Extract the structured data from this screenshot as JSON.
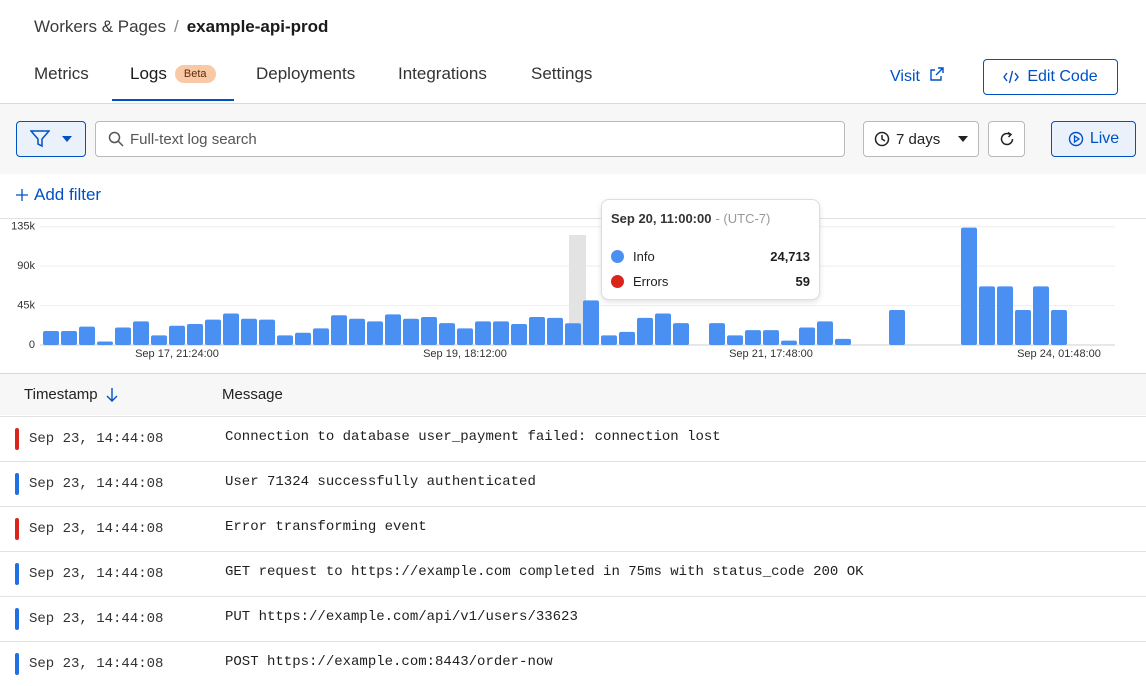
{
  "breadcrumb": {
    "parent": "Workers & Pages",
    "separator": "/",
    "current": "example-api-prod"
  },
  "tabs": [
    {
      "label": "Metrics"
    },
    {
      "label": "Logs",
      "badge": "Beta",
      "active": true
    },
    {
      "label": "Deployments"
    },
    {
      "label": "Integrations"
    },
    {
      "label": "Settings"
    }
  ],
  "actions": {
    "visit": "Visit",
    "edit_code": "Edit Code"
  },
  "toolbar": {
    "search_placeholder": "Full-text log search",
    "time_range": "7 days",
    "live": "Live",
    "add_filter": "Add filter"
  },
  "chart_data": {
    "type": "bar",
    "stacked": true,
    "categories": [
      null,
      null,
      null,
      null,
      null,
      null,
      null,
      "Sep 17, 21:24:00",
      null,
      null,
      null,
      null,
      null,
      null,
      null,
      null,
      null,
      null,
      null,
      null,
      null,
      null,
      null,
      "Sep 19, 18:12:00",
      null,
      null,
      null,
      null,
      null,
      null,
      null,
      null,
      null,
      null,
      null,
      null,
      null,
      null,
      null,
      null,
      "Sep 21, 17:48:00",
      null,
      null,
      null,
      null,
      null,
      null,
      null,
      null,
      null,
      null,
      null,
      null,
      null,
      null,
      null,
      "Sep 24, 01:48:00"
    ],
    "series": [
      {
        "name": "Errors",
        "color": "#d9251c",
        "values": [
          0,
          0,
          0,
          0,
          0,
          0,
          0,
          0,
          0,
          0,
          0,
          0,
          0,
          0,
          0,
          0,
          0,
          0,
          0,
          0,
          0,
          0,
          0,
          0,
          0,
          0,
          0,
          0,
          0,
          59,
          0,
          0,
          0,
          0,
          0,
          0,
          0,
          0,
          0,
          0,
          0,
          0,
          0,
          0,
          0,
          0,
          0,
          0,
          0,
          0,
          0,
          0,
          0,
          0,
          0,
          0,
          0
        ]
      },
      {
        "name": "Info",
        "color": "#4a90f2",
        "values": [
          16000,
          16000,
          21000,
          4000,
          20000,
          27000,
          11000,
          22000,
          24000,
          29000,
          36000,
          30000,
          29000,
          11000,
          14000,
          19000,
          34000,
          30000,
          27000,
          35000,
          30000,
          32000,
          25000,
          19000,
          27000,
          27000,
          24000,
          32000,
          31000,
          24713,
          51000,
          11000,
          15000,
          31000,
          36000,
          25000,
          0,
          25000,
          11000,
          17000,
          17000,
          5000,
          20000,
          27000,
          7000,
          0,
          0,
          40000,
          0,
          0,
          0,
          134000,
          67000,
          67000,
          40000,
          67000,
          40000
        ],
        "value_labels": [
          null,
          null,
          null,
          null,
          null,
          null,
          null,
          null,
          null,
          null,
          null,
          null,
          null,
          null,
          null,
          null,
          null,
          null,
          null,
          null,
          null,
          null,
          null,
          null,
          null,
          null,
          null,
          null,
          null,
          "24,713",
          null,
          null,
          null,
          null,
          null,
          null,
          null,
          null,
          null,
          null,
          null,
          null,
          null,
          null,
          null,
          null,
          null,
          null,
          null,
          null,
          null,
          null,
          null,
          null,
          null,
          null,
          null
        ]
      }
    ],
    "ylim": [
      0,
      145000
    ],
    "yticks": [
      0,
      {
        "value": 45000,
        "label": "45k"
      },
      {
        "value": 90000,
        "label": "90k"
      },
      {
        "value": 135000,
        "label": "135k"
      }
    ],
    "grid": true,
    "tooltip": {
      "title": "Sep 20, 11:00:00",
      "timezone": "- (UTC-7)"
    }
  },
  "table": {
    "columns": [
      "Timestamp",
      "Message"
    ],
    "rows": [
      {
        "color": "#d9251c",
        "timestamp": "Sep 23, 14:44:08",
        "message": "Connection to database user_payment failed: connection lost"
      },
      {
        "color": "#1f6fe5",
        "timestamp": "Sep 23, 14:44:08",
        "message": "User 71324 successfully authenticated"
      },
      {
        "color": "#d9251c",
        "timestamp": "Sep 23, 14:44:08",
        "message": "Error transforming event"
      },
      {
        "color": "#1f6fe5",
        "timestamp": "Sep 23, 14:44:08",
        "message": "GET request to https://example.com completed in 75ms with status_code 200 OK"
      },
      {
        "color": "#1f6fe5",
        "timestamp": "Sep 23, 14:44:08",
        "message": "PUT https://example.com/api/v1/users/33623"
      },
      {
        "color": "#1f6fe5",
        "timestamp": "Sep 23, 14:44:08",
        "message": "POST https://example.com:8443/order-now"
      }
    ]
  }
}
